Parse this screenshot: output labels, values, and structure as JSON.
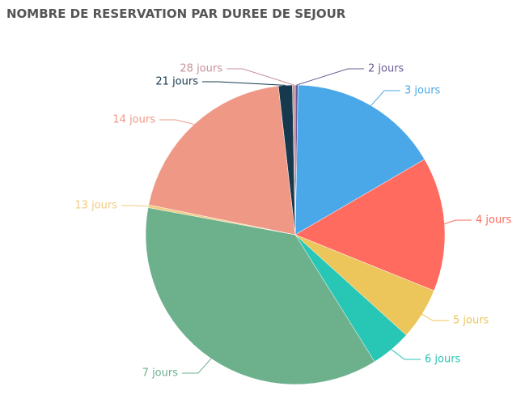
{
  "chart_data": {
    "type": "pie",
    "title": "NOMBRE DE RESERVATION PAR DUREE DE SEJOUR",
    "categories": [
      "2 jours",
      "3 jours",
      "4 jours",
      "5 jours",
      "6 jours",
      "7 jours",
      "13 jours",
      "14 jours",
      "21 jours",
      "28 jours"
    ],
    "values": [
      0.3,
      16.3,
      14.5,
      5.6,
      4.4,
      36.8,
      0.3,
      20.0,
      1.5,
      0.3
    ],
    "colors": [
      "#6b5b95",
      "#4aa8e8",
      "#ff6b5e",
      "#ecc65a",
      "#28c6b4",
      "#6db08c",
      "#f0cc80",
      "#ef9886",
      "#16394e",
      "#c8919c"
    ]
  }
}
